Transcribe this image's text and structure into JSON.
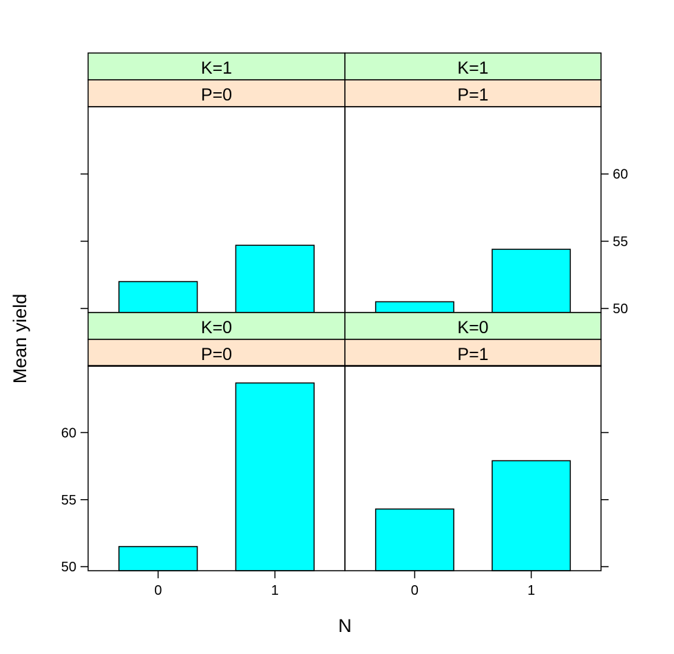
{
  "chart_data": {
    "type": "bar",
    "xlabel": "N",
    "ylabel": "Mean yield",
    "categories": [
      "0",
      "1"
    ],
    "ylim": [
      49.7,
      65.0
    ],
    "yticks": [
      50,
      55,
      60
    ],
    "y_tick_labels": [
      "50",
      "55",
      "60"
    ],
    "bar_color": "#00ffff",
    "strip_colors": {
      "K": "#ccffcc",
      "P": "#ffe5cc"
    },
    "panels": [
      {
        "K_label": "K=1",
        "P_label": "P=0",
        "values": [
          52.0,
          54.7
        ]
      },
      {
        "K_label": "K=1",
        "P_label": "P=1",
        "values": [
          50.5,
          54.4
        ]
      },
      {
        "K_label": "K=0",
        "P_label": "P=0",
        "values": [
          51.5,
          63.7
        ]
      },
      {
        "K_label": "K=0",
        "P_label": "P=1",
        "values": [
          54.3,
          57.9
        ]
      }
    ]
  }
}
